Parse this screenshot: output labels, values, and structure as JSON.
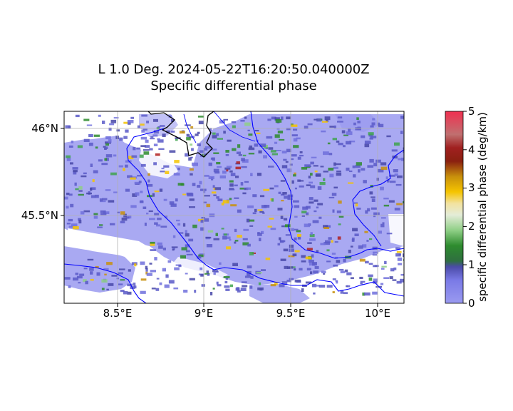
{
  "title": {
    "line1": "L 1.0 Deg. 2024-05-22T16:20:50.040000Z",
    "line2": "Specific differential phase"
  },
  "axes": {
    "x_ticks": [
      "8.5°E",
      "9°E",
      "9.5°E",
      "10°E"
    ],
    "y_ticks": [
      "46°N",
      "45.5°N"
    ]
  },
  "colorbar": {
    "label": "specific differential phase (deg/km)",
    "ticks": [
      "0",
      "1",
      "2",
      "3",
      "4",
      "5"
    ],
    "stops": [
      "#9a9af0",
      "#7878e0",
      "#5050b0",
      "#2e7d32",
      "#3fa34d",
      "#9ccc8a",
      "#d8e8c8",
      "#f0e0a0",
      "#f5c518",
      "#d4a017",
      "#b06a10",
      "#a01818",
      "#c06060",
      "#e35a6a",
      "#f03050"
    ]
  },
  "colors": {
    "echo_base": "#9a9af0",
    "echo_dark": "#5a5ac8",
    "border_country": "#000000",
    "boundary_region": "#0000ff",
    "grid": "#b0b0b0"
  }
}
